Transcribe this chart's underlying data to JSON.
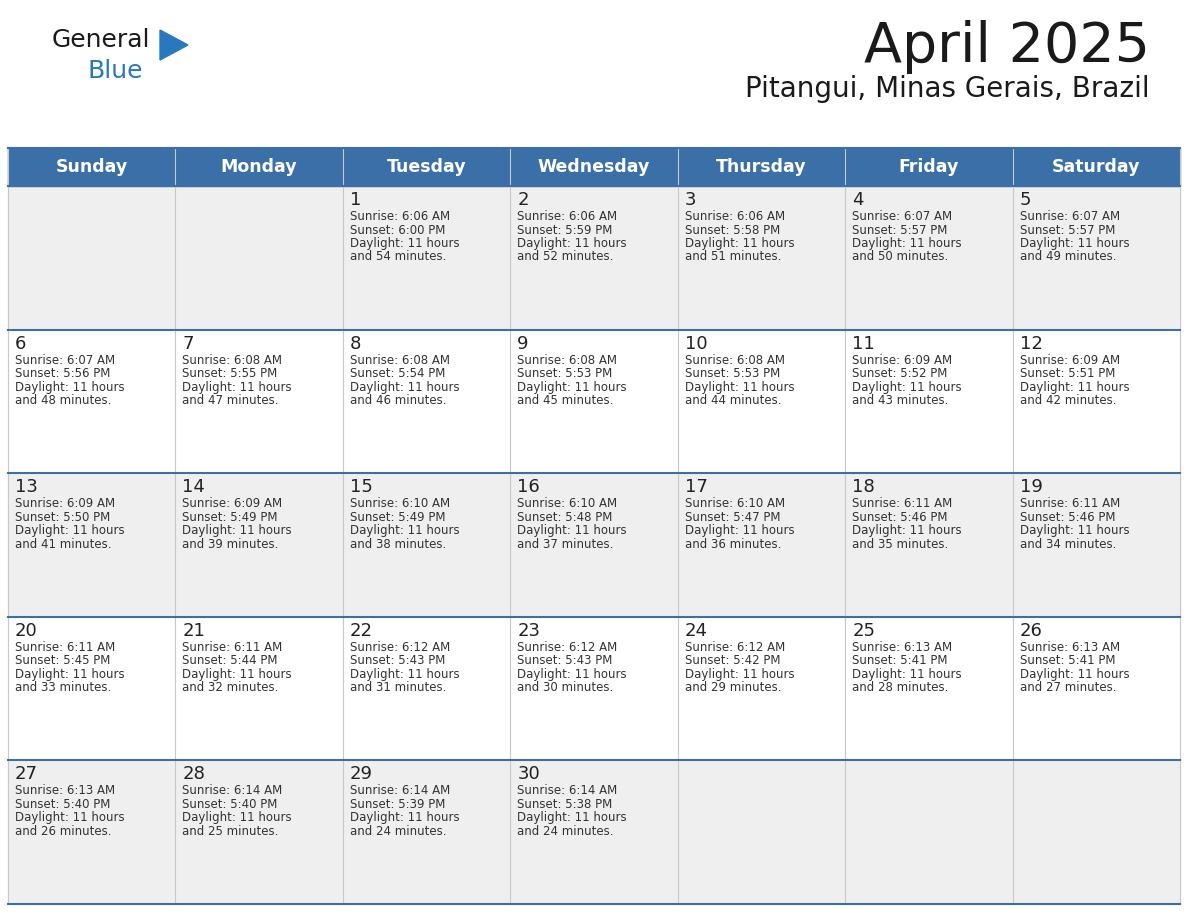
{
  "title": "April 2025",
  "subtitle": "Pitangui, Minas Gerais, Brazil",
  "header_bg_color": "#3a6fa8",
  "header_text_color": "#ffffff",
  "row_bg_colors": [
    "#efefef",
    "#ffffff",
    "#efefef",
    "#ffffff",
    "#efefef"
  ],
  "day_names": [
    "Sunday",
    "Monday",
    "Tuesday",
    "Wednesday",
    "Thursday",
    "Friday",
    "Saturday"
  ],
  "title_color": "#1a1a1a",
  "subtitle_color": "#1a1a1a",
  "cell_text_color": "#333333",
  "day_num_color": "#222222",
  "grid_line_color": "#3a6fa8",
  "days": [
    {
      "day": 1,
      "col": 2,
      "row": 0,
      "sunrise": "6:06 AM",
      "sunset": "6:00 PM",
      "daylight": "11 hours and 54 minutes."
    },
    {
      "day": 2,
      "col": 3,
      "row": 0,
      "sunrise": "6:06 AM",
      "sunset": "5:59 PM",
      "daylight": "11 hours and 52 minutes."
    },
    {
      "day": 3,
      "col": 4,
      "row": 0,
      "sunrise": "6:06 AM",
      "sunset": "5:58 PM",
      "daylight": "11 hours and 51 minutes."
    },
    {
      "day": 4,
      "col": 5,
      "row": 0,
      "sunrise": "6:07 AM",
      "sunset": "5:57 PM",
      "daylight": "11 hours and 50 minutes."
    },
    {
      "day": 5,
      "col": 6,
      "row": 0,
      "sunrise": "6:07 AM",
      "sunset": "5:57 PM",
      "daylight": "11 hours and 49 minutes."
    },
    {
      "day": 6,
      "col": 0,
      "row": 1,
      "sunrise": "6:07 AM",
      "sunset": "5:56 PM",
      "daylight": "11 hours and 48 minutes."
    },
    {
      "day": 7,
      "col": 1,
      "row": 1,
      "sunrise": "6:08 AM",
      "sunset": "5:55 PM",
      "daylight": "11 hours and 47 minutes."
    },
    {
      "day": 8,
      "col": 2,
      "row": 1,
      "sunrise": "6:08 AM",
      "sunset": "5:54 PM",
      "daylight": "11 hours and 46 minutes."
    },
    {
      "day": 9,
      "col": 3,
      "row": 1,
      "sunrise": "6:08 AM",
      "sunset": "5:53 PM",
      "daylight": "11 hours and 45 minutes."
    },
    {
      "day": 10,
      "col": 4,
      "row": 1,
      "sunrise": "6:08 AM",
      "sunset": "5:53 PM",
      "daylight": "11 hours and 44 minutes."
    },
    {
      "day": 11,
      "col": 5,
      "row": 1,
      "sunrise": "6:09 AM",
      "sunset": "5:52 PM",
      "daylight": "11 hours and 43 minutes."
    },
    {
      "day": 12,
      "col": 6,
      "row": 1,
      "sunrise": "6:09 AM",
      "sunset": "5:51 PM",
      "daylight": "11 hours and 42 minutes."
    },
    {
      "day": 13,
      "col": 0,
      "row": 2,
      "sunrise": "6:09 AM",
      "sunset": "5:50 PM",
      "daylight": "11 hours and 41 minutes."
    },
    {
      "day": 14,
      "col": 1,
      "row": 2,
      "sunrise": "6:09 AM",
      "sunset": "5:49 PM",
      "daylight": "11 hours and 39 minutes."
    },
    {
      "day": 15,
      "col": 2,
      "row": 2,
      "sunrise": "6:10 AM",
      "sunset": "5:49 PM",
      "daylight": "11 hours and 38 minutes."
    },
    {
      "day": 16,
      "col": 3,
      "row": 2,
      "sunrise": "6:10 AM",
      "sunset": "5:48 PM",
      "daylight": "11 hours and 37 minutes."
    },
    {
      "day": 17,
      "col": 4,
      "row": 2,
      "sunrise": "6:10 AM",
      "sunset": "5:47 PM",
      "daylight": "11 hours and 36 minutes."
    },
    {
      "day": 18,
      "col": 5,
      "row": 2,
      "sunrise": "6:11 AM",
      "sunset": "5:46 PM",
      "daylight": "11 hours and 35 minutes."
    },
    {
      "day": 19,
      "col": 6,
      "row": 2,
      "sunrise": "6:11 AM",
      "sunset": "5:46 PM",
      "daylight": "11 hours and 34 minutes."
    },
    {
      "day": 20,
      "col": 0,
      "row": 3,
      "sunrise": "6:11 AM",
      "sunset": "5:45 PM",
      "daylight": "11 hours and 33 minutes."
    },
    {
      "day": 21,
      "col": 1,
      "row": 3,
      "sunrise": "6:11 AM",
      "sunset": "5:44 PM",
      "daylight": "11 hours and 32 minutes."
    },
    {
      "day": 22,
      "col": 2,
      "row": 3,
      "sunrise": "6:12 AM",
      "sunset": "5:43 PM",
      "daylight": "11 hours and 31 minutes."
    },
    {
      "day": 23,
      "col": 3,
      "row": 3,
      "sunrise": "6:12 AM",
      "sunset": "5:43 PM",
      "daylight": "11 hours and 30 minutes."
    },
    {
      "day": 24,
      "col": 4,
      "row": 3,
      "sunrise": "6:12 AM",
      "sunset": "5:42 PM",
      "daylight": "11 hours and 29 minutes."
    },
    {
      "day": 25,
      "col": 5,
      "row": 3,
      "sunrise": "6:13 AM",
      "sunset": "5:41 PM",
      "daylight": "11 hours and 28 minutes."
    },
    {
      "day": 26,
      "col": 6,
      "row": 3,
      "sunrise": "6:13 AM",
      "sunset": "5:41 PM",
      "daylight": "11 hours and 27 minutes."
    },
    {
      "day": 27,
      "col": 0,
      "row": 4,
      "sunrise": "6:13 AM",
      "sunset": "5:40 PM",
      "daylight": "11 hours and 26 minutes."
    },
    {
      "day": 28,
      "col": 1,
      "row": 4,
      "sunrise": "6:14 AM",
      "sunset": "5:40 PM",
      "daylight": "11 hours and 25 minutes."
    },
    {
      "day": 29,
      "col": 2,
      "row": 4,
      "sunrise": "6:14 AM",
      "sunset": "5:39 PM",
      "daylight": "11 hours and 24 minutes."
    },
    {
      "day": 30,
      "col": 3,
      "row": 4,
      "sunrise": "6:14 AM",
      "sunset": "5:38 PM",
      "daylight": "11 hours and 24 minutes."
    }
  ],
  "logo_general_color": "#1a1a1a",
  "logo_blue_color": "#2878c0",
  "logo_triangle_color": "#2878c0"
}
